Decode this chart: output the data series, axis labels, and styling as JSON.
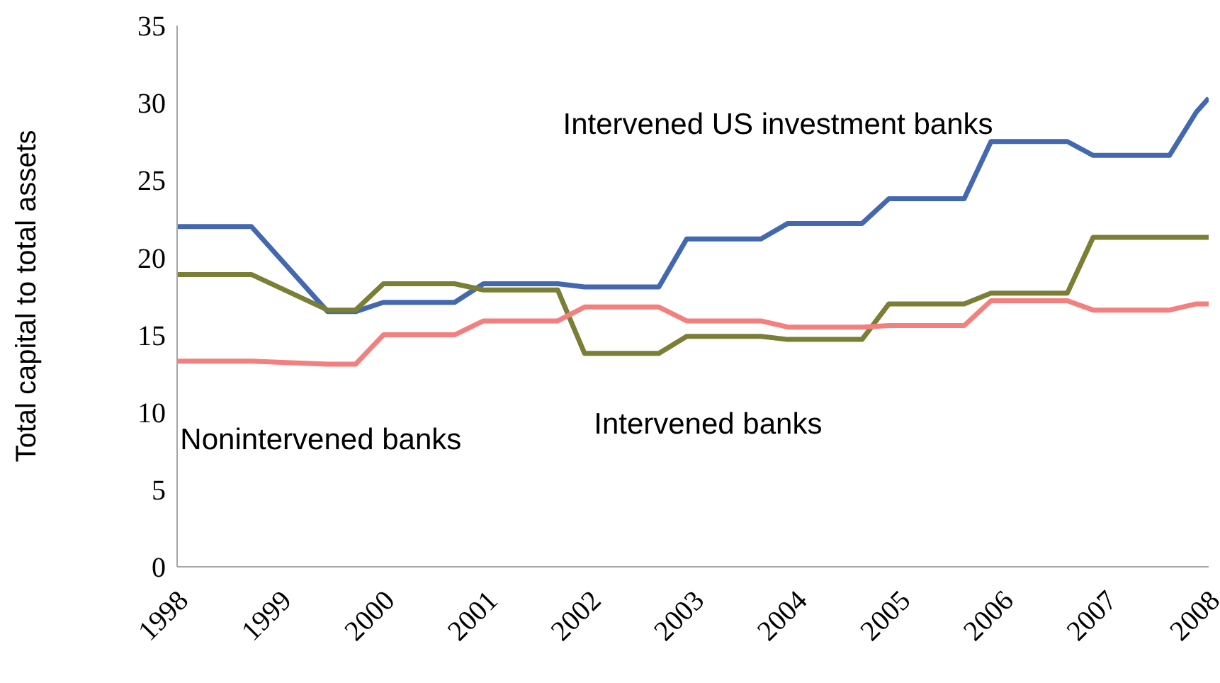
{
  "chart_data": {
    "type": "line",
    "ylabel": "Total capital to total assets",
    "x": [
      1998,
      1998.72,
      1999.46,
      1999.73,
      2000,
      2000.69,
      2000.97,
      2001.69,
      2001.95,
      2002.67,
      2002.94,
      2003.66,
      2003.92,
      2004.64,
      2004.9,
      2005.63,
      2005.89,
      2006.63,
      2006.88,
      2007.62,
      2007.88,
      2008
    ],
    "series": [
      {
        "name": "Intervened US investment banks",
        "color": "#4468b0",
        "values": [
          22.0,
          22.0,
          16.5,
          16.5,
          17.1,
          17.1,
          18.3,
          18.3,
          18.1,
          18.1,
          21.2,
          21.2,
          22.2,
          22.2,
          23.8,
          23.8,
          27.5,
          27.5,
          26.6,
          26.6,
          29.4,
          30.3
        ]
      },
      {
        "name": "Intervened banks",
        "color": "#7a7f35",
        "values": [
          18.9,
          18.9,
          16.6,
          16.6,
          18.3,
          18.3,
          17.9,
          17.9,
          13.8,
          13.8,
          14.9,
          14.9,
          14.7,
          14.7,
          17.0,
          17.0,
          17.7,
          17.7,
          21.3,
          21.3,
          21.3,
          21.3
        ]
      },
      {
        "name": "Nonintervened banks",
        "color": "#f47f7f",
        "values": [
          13.3,
          13.3,
          13.1,
          13.1,
          15.0,
          15.0,
          15.9,
          15.9,
          16.8,
          16.8,
          15.9,
          15.9,
          15.5,
          15.5,
          15.6,
          15.6,
          17.2,
          17.2,
          16.6,
          16.6,
          17.0,
          17.0
        ]
      }
    ],
    "xlim": [
      1998,
      2008
    ],
    "xticks": [
      1998,
      1999,
      2000,
      2001,
      2002,
      2003,
      2004,
      2005,
      2006,
      2007,
      2008
    ],
    "ylim": [
      0,
      35
    ],
    "yticks": [
      0,
      5,
      10,
      15,
      20,
      25,
      30,
      35
    ],
    "legend": false,
    "grid": false,
    "marker": "none"
  }
}
